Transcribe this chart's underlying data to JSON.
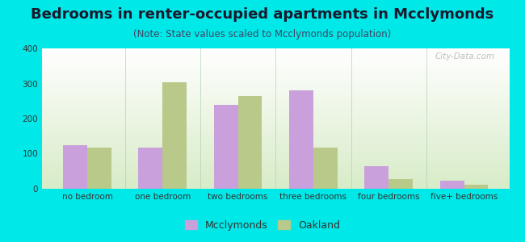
{
  "title": "Bedrooms in renter-occupied apartments in Mcclymonds",
  "subtitle": "(Note: State values scaled to Mcclymonds population)",
  "categories": [
    "no bedroom",
    "one bedroom",
    "two bedrooms",
    "three bedrooms",
    "four bedrooms",
    "five+ bedrooms"
  ],
  "mcclymonds_values": [
    125,
    117,
    240,
    280,
    65,
    22
  ],
  "oakland_values": [
    118,
    303,
    265,
    118,
    27,
    12
  ],
  "mcclymonds_color": "#c9a0dc",
  "oakland_color": "#b8c98a",
  "ylim": [
    0,
    400
  ],
  "yticks": [
    0,
    100,
    200,
    300,
    400
  ],
  "background_color": "#00e8e8",
  "bar_width": 0.32,
  "title_fontsize": 13,
  "subtitle_fontsize": 8.5,
  "tick_fontsize": 7.5,
  "legend_fontsize": 9,
  "watermark_text": "City-Data.com"
}
